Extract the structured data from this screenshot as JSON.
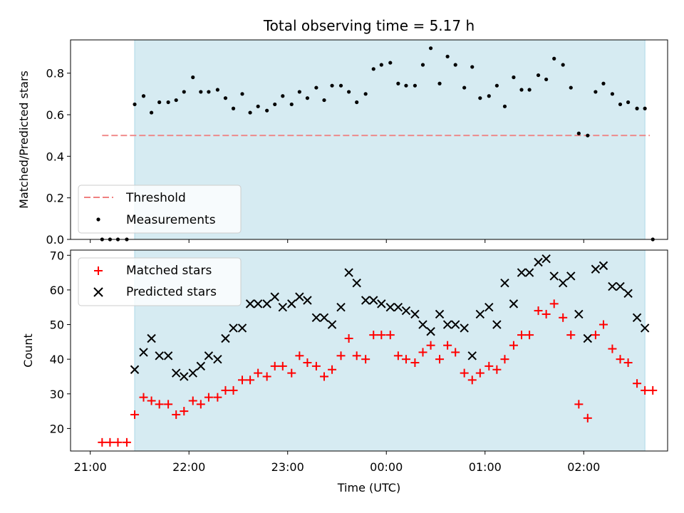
{
  "chart_data": [
    {
      "type": "scatter",
      "title": "Total observing time = 5.17 h",
      "ylabel": "Matched/Predicted stars",
      "xlim": [
        -0.2,
        5.85
      ],
      "ylim": [
        0.0,
        0.96
      ],
      "x_ticks": [
        0,
        1,
        2,
        3,
        4,
        5
      ],
      "y_ticks": [
        0.0,
        0.2,
        0.4,
        0.6,
        0.8
      ],
      "y_tick_labels": [
        "0.0",
        "0.2",
        "0.4",
        "0.6",
        "0.8"
      ],
      "observing_window": [
        0.45,
        5.62
      ],
      "threshold": {
        "value": 0.5,
        "x_range": [
          0.12,
          5.67
        ],
        "color": "#f08080"
      },
      "legend": {
        "location": "lower left",
        "entries": [
          "Threshold",
          "Measurements"
        ]
      },
      "series": [
        {
          "name": "Measurements",
          "color": "#000000",
          "x": [
            0.12,
            0.2,
            0.28,
            0.37,
            0.45,
            0.54,
            0.62,
            0.7,
            0.79,
            0.87,
            0.95,
            1.04,
            1.12,
            1.2,
            1.29,
            1.37,
            1.45,
            1.54,
            1.62,
            1.7,
            1.79,
            1.87,
            1.95,
            2.04,
            2.12,
            2.2,
            2.29,
            2.37,
            2.45,
            2.54,
            2.62,
            2.7,
            2.79,
            2.87,
            2.95,
            3.04,
            3.12,
            3.2,
            3.29,
            3.37,
            3.45,
            3.54,
            3.62,
            3.7,
            3.79,
            3.87,
            3.95,
            4.04,
            4.12,
            4.2,
            4.29,
            4.37,
            4.45,
            4.54,
            4.62,
            4.7,
            4.79,
            4.87,
            4.95,
            5.04,
            5.12,
            5.2,
            5.29,
            5.37,
            5.45,
            5.54,
            5.62,
            5.7
          ],
          "values": [
            0.0,
            0.0,
            0.0,
            0.0,
            0.65,
            0.69,
            0.61,
            0.66,
            0.66,
            0.67,
            0.71,
            0.78,
            0.71,
            0.71,
            0.72,
            0.68,
            0.63,
            0.7,
            0.61,
            0.64,
            0.62,
            0.65,
            0.69,
            0.65,
            0.71,
            0.68,
            0.73,
            0.67,
            0.74,
            0.74,
            0.71,
            0.66,
            0.7,
            0.82,
            0.84,
            0.85,
            0.75,
            0.74,
            0.74,
            0.84,
            0.92,
            0.75,
            0.88,
            0.84,
            0.73,
            0.83,
            0.68,
            0.69,
            0.74,
            0.64,
            0.78,
            0.72,
            0.72,
            0.79,
            0.77,
            0.87,
            0.84,
            0.73,
            0.51,
            0.5,
            0.71,
            0.75,
            0.7,
            0.65,
            0.66,
            0.63,
            0.63,
            0.0
          ]
        }
      ]
    },
    {
      "type": "scatter",
      "title": "",
      "xlabel": "Time (UTC)",
      "ylabel": "Count",
      "xlim": [
        -0.2,
        5.85
      ],
      "ylim": [
        13.5,
        71.5
      ],
      "x_ticks": [
        0,
        1,
        2,
        3,
        4,
        5
      ],
      "x_tick_labels": [
        "21:00",
        "22:00",
        "23:00",
        "00:00",
        "01:00",
        "02:00"
      ],
      "y_ticks": [
        20,
        30,
        40,
        50,
        60,
        70
      ],
      "y_tick_labels": [
        "20",
        "30",
        "40",
        "50",
        "60",
        "70"
      ],
      "observing_window": [
        0.45,
        5.62
      ],
      "legend": {
        "location": "upper left",
        "entries": [
          "Matched stars",
          "Predicted stars"
        ]
      },
      "series": [
        {
          "name": "Matched stars",
          "color": "#ff0000",
          "marker": "+",
          "x": [
            0.12,
            0.2,
            0.28,
            0.37,
            0.45,
            0.54,
            0.62,
            0.7,
            0.79,
            0.87,
            0.95,
            1.04,
            1.12,
            1.2,
            1.29,
            1.37,
            1.45,
            1.54,
            1.62,
            1.7,
            1.79,
            1.87,
            1.95,
            2.04,
            2.12,
            2.2,
            2.29,
            2.37,
            2.45,
            2.54,
            2.62,
            2.7,
            2.79,
            2.87,
            2.95,
            3.04,
            3.12,
            3.2,
            3.29,
            3.37,
            3.45,
            3.54,
            3.62,
            3.7,
            3.79,
            3.87,
            3.95,
            4.04,
            4.12,
            4.2,
            4.29,
            4.37,
            4.45,
            4.54,
            4.62,
            4.7,
            4.79,
            4.87,
            4.95,
            5.04,
            5.12,
            5.2,
            5.29,
            5.37,
            5.45,
            5.54,
            5.62,
            5.7
          ],
          "values": [
            16,
            16,
            16,
            16,
            24,
            29,
            28,
            27,
            27,
            24,
            25,
            28,
            27,
            29,
            29,
            31,
            31,
            34,
            34,
            36,
            35,
            38,
            38,
            36,
            41,
            39,
            38,
            35,
            37,
            41,
            46,
            41,
            40,
            47,
            47,
            47,
            41,
            40,
            39,
            42,
            44,
            40,
            44,
            42,
            36,
            34,
            36,
            38,
            37,
            40,
            44,
            47,
            47,
            54,
            53,
            56,
            52,
            47,
            27,
            23,
            47,
            50,
            43,
            40,
            39,
            33,
            31,
            31
          ]
        },
        {
          "name": "Predicted stars",
          "color": "#000000",
          "marker": "x",
          "x": [
            0.45,
            0.54,
            0.62,
            0.7,
            0.79,
            0.87,
            0.95,
            1.04,
            1.12,
            1.2,
            1.29,
            1.37,
            1.45,
            1.54,
            1.62,
            1.7,
            1.79,
            1.87,
            1.95,
            2.04,
            2.12,
            2.2,
            2.29,
            2.37,
            2.45,
            2.54,
            2.62,
            2.7,
            2.79,
            2.87,
            2.95,
            3.04,
            3.12,
            3.2,
            3.29,
            3.37,
            3.45,
            3.54,
            3.62,
            3.7,
            3.79,
            3.87,
            3.95,
            4.04,
            4.12,
            4.2,
            4.29,
            4.37,
            4.45,
            4.54,
            4.62,
            4.7,
            4.79,
            4.87,
            4.95,
            5.04,
            5.12,
            5.2,
            5.29,
            5.37,
            5.45,
            5.54,
            5.62
          ],
          "values": [
            37,
            42,
            46,
            41,
            41,
            36,
            35,
            36,
            38,
            41,
            40,
            46,
            49,
            49,
            56,
            56,
            56,
            58,
            55,
            56,
            58,
            57,
            52,
            52,
            50,
            55,
            65,
            62,
            57,
            57,
            56,
            55,
            55,
            54,
            53,
            50,
            48,
            53,
            50,
            50,
            49,
            41,
            53,
            55,
            50,
            62,
            56,
            65,
            65,
            68,
            69,
            64,
            62,
            64,
            53,
            46,
            66,
            67,
            61,
            61,
            59,
            52,
            49
          ]
        }
      ]
    }
  ]
}
